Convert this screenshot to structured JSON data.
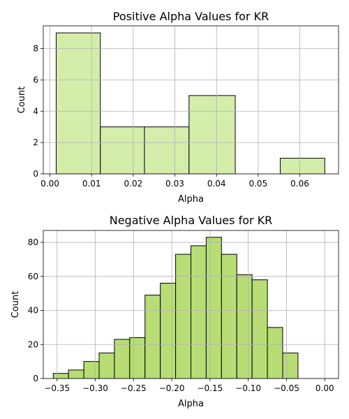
{
  "chart_data": [
    {
      "type": "bar",
      "title": "Positive Alpha Values for KR",
      "xlabel": "Alpha",
      "ylabel": "Count",
      "xlim": [
        -0.0016,
        0.0693
      ],
      "ylim": [
        0,
        9.45
      ],
      "grid": true,
      "color": "#d4edaa",
      "bins": [
        {
          "x0": 0.0015,
          "x1": 0.0121,
          "count": 9
        },
        {
          "x0": 0.0121,
          "x1": 0.0227,
          "count": 3
        },
        {
          "x0": 0.0227,
          "x1": 0.0334,
          "count": 3
        },
        {
          "x0": 0.0334,
          "x1": 0.0445,
          "count": 5
        },
        {
          "x0": 0.0445,
          "x1": 0.0553,
          "count": 0
        },
        {
          "x0": 0.0553,
          "x1": 0.066,
          "count": 1
        }
      ],
      "xticks": [
        {
          "value": 0.0,
          "label": "0.00"
        },
        {
          "value": 0.01,
          "label": "0.01"
        },
        {
          "value": 0.02,
          "label": "0.02"
        },
        {
          "value": 0.03,
          "label": "0.03"
        },
        {
          "value": 0.04,
          "label": "0.04"
        },
        {
          "value": 0.05,
          "label": "0.05"
        },
        {
          "value": 0.06,
          "label": "0.06"
        }
      ],
      "yticks": [
        {
          "value": 0,
          "label": "0"
        },
        {
          "value": 2,
          "label": "2"
        },
        {
          "value": 4,
          "label": "4"
        },
        {
          "value": 6,
          "label": "6"
        },
        {
          "value": 8,
          "label": "8"
        }
      ]
    },
    {
      "type": "bar",
      "title": "Negative Alpha Values for KR",
      "xlabel": "Alpha",
      "ylabel": "Count",
      "xlim": [
        -0.368,
        0.018
      ],
      "ylim": [
        0,
        87
      ],
      "grid": true,
      "color": "#b7dd74",
      "bins": [
        {
          "x0": -0.355,
          "x1": -0.335,
          "count": 3
        },
        {
          "x0": -0.335,
          "x1": -0.315,
          "count": 5
        },
        {
          "x0": -0.315,
          "x1": -0.295,
          "count": 10
        },
        {
          "x0": -0.295,
          "x1": -0.275,
          "count": 15
        },
        {
          "x0": -0.275,
          "x1": -0.255,
          "count": 23
        },
        {
          "x0": -0.255,
          "x1": -0.235,
          "count": 24
        },
        {
          "x0": -0.235,
          "x1": -0.215,
          "count": 49
        },
        {
          "x0": -0.215,
          "x1": -0.195,
          "count": 56
        },
        {
          "x0": -0.195,
          "x1": -0.175,
          "count": 73
        },
        {
          "x0": -0.175,
          "x1": -0.155,
          "count": 78
        },
        {
          "x0": -0.155,
          "x1": -0.135,
          "count": 83
        },
        {
          "x0": -0.135,
          "x1": -0.115,
          "count": 73
        },
        {
          "x0": -0.115,
          "x1": -0.095,
          "count": 61
        },
        {
          "x0": -0.095,
          "x1": -0.075,
          "count": 58
        },
        {
          "x0": -0.075,
          "x1": -0.055,
          "count": 30
        },
        {
          "x0": -0.055,
          "x1": -0.035,
          "count": 15
        }
      ],
      "xticks": [
        {
          "value": -0.35,
          "label": "−0.35"
        },
        {
          "value": -0.3,
          "label": "−0.30"
        },
        {
          "value": -0.25,
          "label": "−0.25"
        },
        {
          "value": -0.2,
          "label": "−0.20"
        },
        {
          "value": -0.15,
          "label": "−0.15"
        },
        {
          "value": -0.1,
          "label": "−0.10"
        },
        {
          "value": -0.05,
          "label": "−0.05"
        },
        {
          "value": 0.0,
          "label": "0.00"
        }
      ],
      "yticks": [
        {
          "value": 0,
          "label": "0"
        },
        {
          "value": 20,
          "label": "20"
        },
        {
          "value": 40,
          "label": "40"
        },
        {
          "value": 60,
          "label": "60"
        },
        {
          "value": 80,
          "label": "80"
        }
      ]
    }
  ]
}
